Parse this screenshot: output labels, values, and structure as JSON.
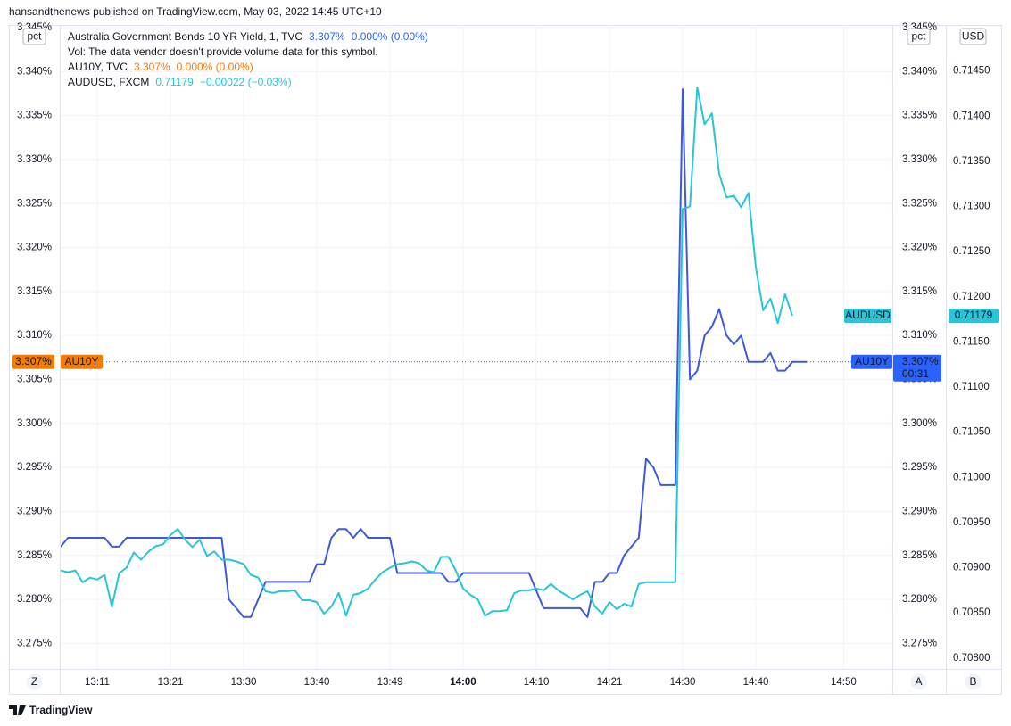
{
  "header": "hansandthenews published on TradingView.com, May 03, 2022 14:45 UTC+10",
  "footer": "TradingView",
  "toolbar": {
    "left": "Z",
    "right": [
      "A",
      "B"
    ]
  },
  "chart_data": {
    "type": "line",
    "volume_note": "Vol: The data vendor doesn't provide volume data for this symbol.",
    "y_unit": "pct",
    "y2_unit": "USD",
    "grid": true,
    "categories": [
      null,
      null,
      null,
      null,
      null,
      "13:11",
      null,
      null,
      null,
      null,
      null,
      null,
      null,
      null,
      null,
      "13:21",
      null,
      null,
      null,
      null,
      null,
      null,
      null,
      null,
      null,
      "13:30",
      null,
      null,
      null,
      null,
      null,
      null,
      null,
      null,
      null,
      "13:40",
      null,
      null,
      null,
      null,
      null,
      null,
      null,
      null,
      null,
      "13:49",
      null,
      null,
      null,
      null,
      null,
      null,
      null,
      null,
      null,
      "14:00",
      null,
      null,
      null,
      null,
      null,
      null,
      null,
      null,
      null,
      "14:10",
      null,
      null,
      null,
      null,
      null,
      null,
      null,
      null,
      null,
      "14:21",
      null,
      null,
      null,
      null,
      null,
      null,
      null,
      null,
      null,
      "14:30",
      null,
      null,
      null,
      null,
      null,
      null,
      null,
      null,
      null,
      "14:40",
      null,
      null,
      null,
      null,
      null,
      null,
      null,
      null,
      null,
      null,
      null,
      "14:50",
      null
    ],
    "series": [
      {
        "name": "Australia Government Bonds 10 YR Yield, 1, TVC",
        "color": "#2962ff",
        "line_color": "#3f5ad6",
        "price": "3.307%",
        "change": "0.000% (0.00%)",
        "tag_name": "AU10Y",
        "tag_value": "3.307%",
        "countdown": "00:31",
        "values": [
          3.286,
          3.287,
          3.287,
          3.287,
          3.287,
          3.287,
          3.287,
          3.286,
          3.286,
          3.287,
          3.287,
          3.287,
          3.287,
          3.287,
          3.287,
          3.287,
          3.287,
          3.287,
          3.287,
          3.287,
          3.287,
          3.287,
          3.287,
          3.28,
          3.279,
          3.278,
          3.278,
          3.28,
          3.282,
          3.282,
          3.282,
          3.282,
          3.282,
          3.282,
          3.282,
          3.284,
          3.284,
          3.287,
          3.288,
          3.288,
          3.287,
          3.288,
          3.287,
          3.287,
          3.287,
          3.287,
          3.283,
          3.283,
          3.283,
          3.283,
          3.283,
          3.283,
          3.283,
          3.282,
          3.282,
          3.283,
          3.283,
          3.283,
          3.283,
          3.283,
          3.283,
          3.283,
          3.283,
          3.283,
          3.283,
          3.281,
          3.279,
          3.279,
          3.279,
          3.279,
          3.279,
          3.279,
          3.278,
          3.282,
          3.282,
          3.283,
          3.283,
          3.285,
          3.286,
          3.287,
          3.296,
          3.295,
          3.293,
          3.293,
          3.293,
          3.338,
          3.305,
          3.306,
          3.31,
          3.311,
          3.313,
          3.31,
          3.309,
          3.31,
          3.307,
          3.307,
          3.307,
          3.308,
          3.306,
          3.306,
          3.307,
          3.307,
          3.307,
          null,
          null,
          null,
          null,
          null,
          null
        ]
      },
      {
        "name": "AUDUSD, FXCM",
        "color": "#26c6da",
        "axis": "y2",
        "price": "0.71179",
        "change": "−0.00022 (−0.03%)",
        "tag_name": "AUDUSD",
        "tag_value": "0.71179",
        "values": [
          0.70897,
          0.70895,
          0.70897,
          0.70884,
          0.70889,
          0.70887,
          0.70892,
          0.70857,
          0.70894,
          0.709,
          0.70917,
          0.70909,
          0.70918,
          0.70924,
          0.70926,
          0.70936,
          0.70943,
          0.70931,
          0.70923,
          0.70931,
          0.70913,
          0.70918,
          0.70909,
          0.70909,
          0.70907,
          0.70904,
          0.70892,
          0.70889,
          0.70874,
          0.70872,
          0.70874,
          0.70874,
          0.70875,
          0.70864,
          0.70864,
          0.70862,
          0.70849,
          0.70857,
          0.70872,
          0.70847,
          0.7087,
          0.70872,
          0.70877,
          0.70887,
          0.70895,
          0.709,
          0.70904,
          0.70905,
          0.70907,
          0.70905,
          0.70897,
          0.70895,
          0.70912,
          0.70912,
          0.70897,
          0.70877,
          0.7087,
          0.70865,
          0.70847,
          0.70852,
          0.70852,
          0.70853,
          0.70872,
          0.70875,
          0.70875,
          0.70877,
          0.70875,
          0.70882,
          0.70875,
          0.7087,
          0.70865,
          0.7087,
          0.70874,
          0.70857,
          0.70849,
          0.70862,
          0.70854,
          0.7086,
          0.70857,
          0.70882,
          0.70884,
          0.70884,
          0.70884,
          0.70884,
          0.70884,
          0.71297,
          0.713,
          0.71432,
          0.71391,
          0.71403,
          0.71336,
          0.7131,
          0.71312,
          0.71299,
          0.71315,
          0.71233,
          0.71185,
          0.71198,
          0.71171,
          0.71203,
          0.71179,
          null,
          null,
          null,
          null,
          null,
          null,
          null,
          null
        ]
      }
    ],
    "overlay": {
      "name": "AU10Y, TVC",
      "color": "#f57c00",
      "price": "3.307%",
      "change": "0.000% (0.00%)",
      "tag_name": "AU10Y",
      "tag_value": "3.307%"
    },
    "ylim": [
      3.2721,
      3.3453
    ],
    "yticks": [
      {
        "value": 3.275,
        "label": "3.275%"
      },
      {
        "value": 3.28,
        "label": "3.280%"
      },
      {
        "value": 3.285,
        "label": "3.285%"
      },
      {
        "value": 3.29,
        "label": "3.290%"
      },
      {
        "value": 3.295,
        "label": "3.295%"
      },
      {
        "value": 3.3,
        "label": "3.300%"
      },
      {
        "value": 3.305,
        "label": "3.305%"
      },
      {
        "value": 3.31,
        "label": "3.310%"
      },
      {
        "value": 3.315,
        "label": "3.315%"
      },
      {
        "value": 3.32,
        "label": "3.320%"
      },
      {
        "value": 3.325,
        "label": "3.325%"
      },
      {
        "value": 3.33,
        "label": "3.330%"
      },
      {
        "value": 3.335,
        "label": "3.335%"
      },
      {
        "value": 3.34,
        "label": "3.340%"
      },
      {
        "value": 3.345,
        "label": "3.345%"
      }
    ],
    "y2lim": [
      0.70788,
      0.71501
    ],
    "y2ticks": [
      {
        "value": 0.708,
        "label": "0.70800"
      },
      {
        "value": 0.7085,
        "label": "0.70850"
      },
      {
        "value": 0.709,
        "label": "0.70900"
      },
      {
        "value": 0.7095,
        "label": "0.70950"
      },
      {
        "value": 0.71,
        "label": "0.71000"
      },
      {
        "value": 0.7105,
        "label": "0.71050"
      },
      {
        "value": 0.711,
        "label": "0.71100"
      },
      {
        "value": 0.7115,
        "label": "0.71150"
      },
      {
        "value": 0.712,
        "label": "0.71200"
      },
      {
        "value": 0.7125,
        "label": "0.71250"
      },
      {
        "value": 0.713,
        "label": "0.71300"
      },
      {
        "value": 0.7135,
        "label": "0.71350"
      },
      {
        "value": 0.714,
        "label": "0.71400"
      },
      {
        "value": 0.7145,
        "label": "0.71450"
      }
    ]
  }
}
